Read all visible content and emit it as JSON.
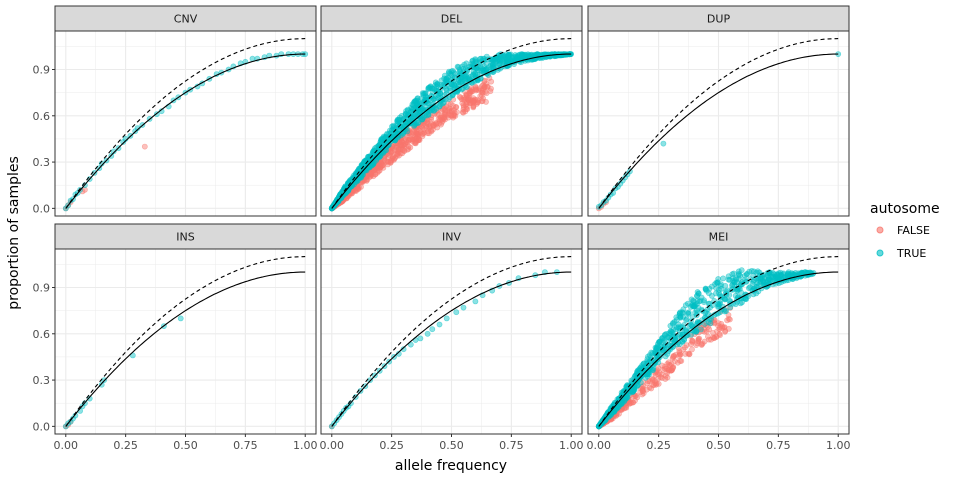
{
  "chart_data": {
    "type": "scatter",
    "xlabel": "allele frequency",
    "ylabel": "proportion of samples",
    "xlim": [
      0,
      1
    ],
    "ylim": [
      0,
      1.1
    ],
    "x_ticks": [
      0.0,
      0.25,
      0.5,
      0.75,
      1.0
    ],
    "x_tick_labels": [
      "0.00",
      "0.25",
      "0.50",
      "0.75",
      "1.00"
    ],
    "y_ticks": [
      0.0,
      0.3,
      0.6,
      0.9
    ],
    "y_tick_labels": [
      "0.0",
      "0.3",
      "0.6",
      "0.9"
    ],
    "grid": true,
    "legend": {
      "title": "autosome",
      "placement": "right",
      "entries": [
        {
          "label": "FALSE",
          "color": "#F8766D"
        },
        {
          "label": "TRUE",
          "color": "#00BFC4"
        }
      ]
    },
    "reference_curves": [
      {
        "style": "solid",
        "formula": "1-(1-p)^2"
      },
      {
        "style": "dashed",
        "formula": "1.1*(1-(1-p)^2)"
      }
    ],
    "panels": [
      {
        "label": "CNV",
        "series": [
          {
            "name": "FALSE",
            "points": [
              [
                0.0,
                0.0
              ],
              [
                0.01,
                0.02
              ],
              [
                0.02,
                0.04
              ],
              [
                0.07,
                0.11
              ],
              [
                0.08,
                0.12
              ],
              [
                0.33,
                0.4
              ]
            ]
          },
          {
            "name": "TRUE",
            "points": [
              [
                0.0,
                0.0
              ],
              [
                0.01,
                0.02
              ],
              [
                0.02,
                0.05
              ],
              [
                0.03,
                0.06
              ],
              [
                0.04,
                0.09
              ],
              [
                0.05,
                0.1
              ],
              [
                0.06,
                0.12
              ],
              [
                0.08,
                0.15
              ],
              [
                0.1,
                0.19
              ],
              [
                0.12,
                0.23
              ],
              [
                0.14,
                0.26
              ],
              [
                0.15,
                0.29
              ],
              [
                0.17,
                0.31
              ],
              [
                0.19,
                0.34
              ],
              [
                0.2,
                0.37
              ],
              [
                0.22,
                0.39
              ],
              [
                0.24,
                0.43
              ],
              [
                0.25,
                0.45
              ],
              [
                0.27,
                0.47
              ],
              [
                0.29,
                0.5
              ],
              [
                0.3,
                0.52
              ],
              [
                0.32,
                0.54
              ],
              [
                0.35,
                0.58
              ],
              [
                0.38,
                0.61
              ],
              [
                0.4,
                0.63
              ],
              [
                0.43,
                0.66
              ],
              [
                0.45,
                0.7
              ],
              [
                0.47,
                0.72
              ],
              [
                0.5,
                0.75
              ],
              [
                0.52,
                0.77
              ],
              [
                0.55,
                0.79
              ],
              [
                0.57,
                0.81
              ],
              [
                0.6,
                0.84
              ],
              [
                0.63,
                0.87
              ],
              [
                0.65,
                0.88
              ],
              [
                0.68,
                0.9
              ],
              [
                0.7,
                0.92
              ],
              [
                0.73,
                0.94
              ],
              [
                0.75,
                0.95
              ],
              [
                0.78,
                0.97
              ],
              [
                0.8,
                0.97
              ],
              [
                0.83,
                0.98
              ],
              [
                0.85,
                0.99
              ],
              [
                0.88,
                0.99
              ],
              [
                0.9,
                1.0
              ],
              [
                0.93,
                1.0
              ],
              [
                0.95,
                1.0
              ],
              [
                0.97,
                1.0
              ],
              [
                0.99,
                1.0
              ],
              [
                1.0,
                1.0
              ]
            ]
          }
        ]
      },
      {
        "label": "DEL",
        "cloud": true,
        "series": [
          {
            "name": "FALSE",
            "band": [
              [
                0.0,
                0.0,
                0.0
              ],
              [
                0.05,
                0.05,
                0.09
              ],
              [
                0.1,
                0.11,
                0.18
              ],
              [
                0.2,
                0.24,
                0.34
              ],
              [
                0.3,
                0.36,
                0.48
              ],
              [
                0.4,
                0.48,
                0.6
              ],
              [
                0.5,
                0.58,
                0.7
              ],
              [
                0.6,
                0.66,
                0.8
              ],
              [
                0.67,
                0.7,
                0.86
              ]
            ],
            "count": 650
          },
          {
            "name": "TRUE",
            "band": [
              [
                0.0,
                0.0,
                0.0
              ],
              [
                0.05,
                0.08,
                0.13
              ],
              [
                0.1,
                0.16,
                0.23
              ],
              [
                0.2,
                0.33,
                0.44
              ],
              [
                0.3,
                0.48,
                0.62
              ],
              [
                0.4,
                0.6,
                0.78
              ],
              [
                0.5,
                0.72,
                0.9
              ],
              [
                0.6,
                0.82,
                0.97
              ],
              [
                0.7,
                0.9,
                1.0
              ],
              [
                0.8,
                0.95,
                1.0
              ],
              [
                0.9,
                0.98,
                1.0
              ],
              [
                1.0,
                1.0,
                1.0
              ]
            ],
            "count": 1200
          }
        ]
      },
      {
        "label": "DUP",
        "series": [
          {
            "name": "FALSE",
            "points": [
              [
                0.0,
                0.0
              ],
              [
                0.01,
                0.01
              ],
              [
                0.02,
                0.03
              ],
              [
                0.03,
                0.04
              ]
            ]
          },
          {
            "name": "TRUE",
            "points": [
              [
                0.0,
                0.01
              ],
              [
                0.01,
                0.02
              ],
              [
                0.02,
                0.04
              ],
              [
                0.03,
                0.05
              ],
              [
                0.04,
                0.07
              ],
              [
                0.05,
                0.09
              ],
              [
                0.06,
                0.1
              ],
              [
                0.07,
                0.13
              ],
              [
                0.08,
                0.14
              ],
              [
                0.09,
                0.16
              ],
              [
                0.1,
                0.18
              ],
              [
                0.11,
                0.2
              ],
              [
                0.12,
                0.22
              ],
              [
                0.13,
                0.24
              ],
              [
                0.27,
                0.42
              ],
              [
                1.0,
                1.0
              ]
            ]
          }
        ]
      },
      {
        "label": "INS",
        "series": [
          {
            "name": "FALSE",
            "points": [
              [
                0.0,
                0.0
              ],
              [
                0.01,
                0.01
              ],
              [
                0.02,
                0.03
              ]
            ]
          },
          {
            "name": "TRUE",
            "points": [
              [
                0.0,
                0.0
              ],
              [
                0.01,
                0.02
              ],
              [
                0.02,
                0.03
              ],
              [
                0.03,
                0.05
              ],
              [
                0.04,
                0.07
              ],
              [
                0.06,
                0.1
              ],
              [
                0.07,
                0.13
              ],
              [
                0.08,
                0.15
              ],
              [
                0.1,
                0.18
              ],
              [
                0.15,
                0.27
              ],
              [
                0.16,
                0.3
              ],
              [
                0.28,
                0.46
              ],
              [
                0.41,
                0.65
              ],
              [
                0.48,
                0.7
              ]
            ]
          }
        ]
      },
      {
        "label": "INV",
        "series": [
          {
            "name": "FALSE",
            "points": [
              [
                0.0,
                0.0
              ]
            ]
          },
          {
            "name": "TRUE",
            "points": [
              [
                0.0,
                0.0
              ],
              [
                0.01,
                0.02
              ],
              [
                0.02,
                0.04
              ],
              [
                0.03,
                0.06
              ],
              [
                0.04,
                0.08
              ],
              [
                0.05,
                0.1
              ],
              [
                0.06,
                0.12
              ],
              [
                0.07,
                0.13
              ],
              [
                0.08,
                0.15
              ],
              [
                0.1,
                0.19
              ],
              [
                0.12,
                0.23
              ],
              [
                0.14,
                0.26
              ],
              [
                0.16,
                0.3
              ],
              [
                0.18,
                0.33
              ],
              [
                0.2,
                0.36
              ],
              [
                0.22,
                0.39
              ],
              [
                0.24,
                0.42
              ],
              [
                0.26,
                0.45
              ],
              [
                0.28,
                0.47
              ],
              [
                0.3,
                0.5
              ],
              [
                0.33,
                0.53
              ],
              [
                0.35,
                0.56
              ],
              [
                0.37,
                0.57
              ],
              [
                0.4,
                0.6
              ],
              [
                0.42,
                0.63
              ],
              [
                0.45,
                0.66
              ],
              [
                0.48,
                0.7
              ],
              [
                0.52,
                0.74
              ],
              [
                0.55,
                0.77
              ],
              [
                0.6,
                0.81
              ],
              [
                0.63,
                0.85
              ],
              [
                0.67,
                0.88
              ],
              [
                0.7,
                0.91
              ],
              [
                0.74,
                0.93
              ],
              [
                0.78,
                0.96
              ],
              [
                0.85,
                0.98
              ],
              [
                0.89,
                1.0
              ],
              [
                0.94,
                1.0
              ]
            ]
          }
        ]
      },
      {
        "label": "MEI",
        "cloud": true,
        "series": [
          {
            "name": "FALSE",
            "band": [
              [
                0.0,
                0.0,
                0.0
              ],
              [
                0.05,
                0.04,
                0.08
              ],
              [
                0.1,
                0.1,
                0.16
              ],
              [
                0.2,
                0.22,
                0.31
              ],
              [
                0.3,
                0.33,
                0.45
              ],
              [
                0.4,
                0.5,
                0.62
              ],
              [
                0.5,
                0.58,
                0.74
              ],
              [
                0.55,
                0.6,
                0.78
              ]
            ],
            "count": 300
          },
          {
            "name": "TRUE",
            "band": [
              [
                0.0,
                0.0,
                0.0
              ],
              [
                0.05,
                0.07,
                0.12
              ],
              [
                0.1,
                0.15,
                0.23
              ],
              [
                0.2,
                0.32,
                0.44
              ],
              [
                0.3,
                0.48,
                0.66
              ],
              [
                0.4,
                0.6,
                0.86
              ],
              [
                0.5,
                0.7,
                0.96
              ],
              [
                0.6,
                0.8,
                1.02
              ],
              [
                0.7,
                0.9,
                1.0
              ],
              [
                0.8,
                0.95,
                1.0
              ],
              [
                0.9,
                0.99,
                1.0
              ]
            ],
            "count": 900
          }
        ]
      }
    ]
  },
  "colors": {
    "false": "#F8766D",
    "true": "#00BFC4",
    "strip_bg": "#D9D9D9",
    "grid": "#EBEBEB",
    "border": "#333333"
  }
}
